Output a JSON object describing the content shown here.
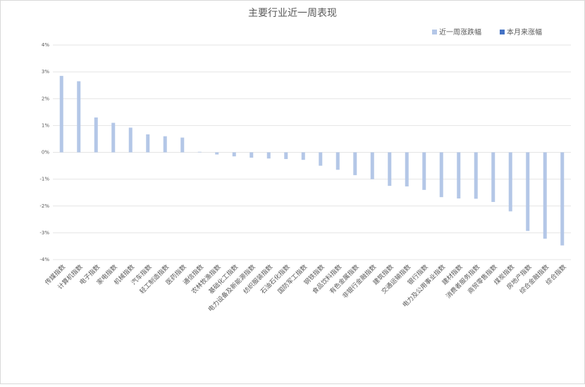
{
  "chart_data": {
    "type": "bar",
    "title": "主要行业近一周表现",
    "categories": [
      "传媒指数",
      "计算机指数",
      "电子指数",
      "家电指数",
      "机械指数",
      "汽车指数",
      "轻工制造指数",
      "医药指数",
      "通信指数",
      "农林牧渔指数",
      "基础化工指数",
      "电力设备及新能源指数",
      "纺织服装指数",
      "石油石化指数",
      "国防军工指数",
      "钢铁指数",
      "食品饮料指数",
      "有色金属指数",
      "非银行金融指数",
      "建筑指数",
      "交通运输指数",
      "银行指数",
      "电力及公用事业指数",
      "建材指数",
      "消费者服务指数",
      "商贸零售指数",
      "煤炭指数",
      "房地产指数",
      "综合金融指数",
      "综合指数"
    ],
    "series": [
      {
        "name": "近一周涨跌幅",
        "color": "#b4c7e7",
        "values": [
          2.85,
          2.65,
          1.3,
          1.1,
          0.92,
          0.67,
          0.6,
          0.55,
          0.02,
          -0.08,
          -0.15,
          -0.2,
          -0.23,
          -0.25,
          -0.28,
          -0.5,
          -0.65,
          -0.85,
          -1.0,
          -1.25,
          -1.27,
          -1.4,
          -1.67,
          -1.72,
          -1.73,
          -1.85,
          -2.2,
          -2.93,
          -3.22,
          -3.47
        ]
      },
      {
        "name": "本月来涨幅",
        "color": "#4472c4",
        "values": [
          null,
          null,
          null,
          null,
          null,
          null,
          null,
          null,
          null,
          null,
          null,
          null,
          null,
          null,
          null,
          null,
          null,
          null,
          null,
          null,
          null,
          null,
          null,
          null,
          null,
          null,
          null,
          null,
          null,
          null
        ]
      }
    ],
    "ylim": [
      -4,
      4
    ],
    "yticks": [
      {
        "value": -4,
        "label": "-4%"
      },
      {
        "value": -3,
        "label": "-3%"
      },
      {
        "value": -2,
        "label": "-2%"
      },
      {
        "value": -1,
        "label": "-1%"
      },
      {
        "value": 0,
        "label": "0%"
      },
      {
        "value": 1,
        "label": "1%"
      },
      {
        "value": 2,
        "label": "2%"
      },
      {
        "value": 3,
        "label": "3%"
      },
      {
        "value": 4,
        "label": "4%"
      }
    ],
    "grid": true
  }
}
